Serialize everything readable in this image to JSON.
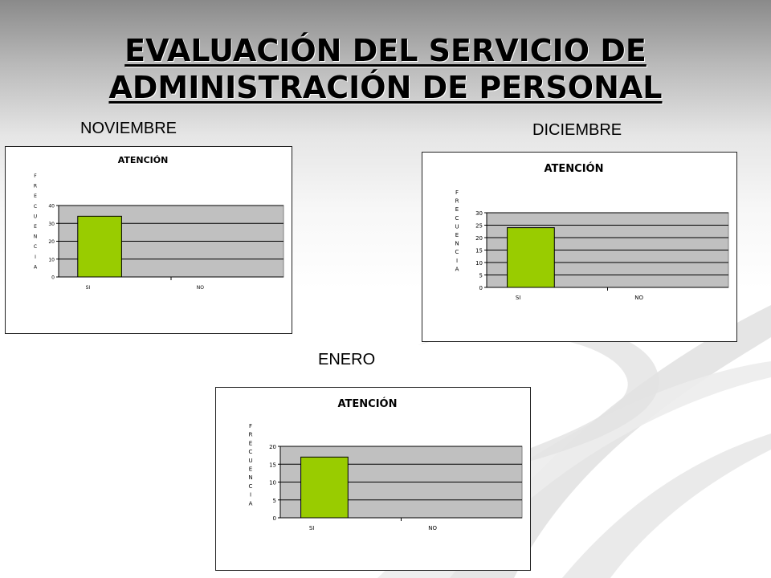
{
  "slide": {
    "title_line1": "EVALUACIÓN DEL SERVICIO DE",
    "title_line2": "ADMINISTRACIÓN DE PERSONAL"
  },
  "colors": {
    "bar": "#99cc00",
    "plot_bg": "#c0c0c0",
    "frame": "#222222"
  },
  "chart_data": [
    {
      "month": "NOVIEMBRE",
      "type": "bar",
      "title": "ATENCIÓN",
      "ylabel": "FRECUENCIA",
      "categories": [
        "SI",
        "NO"
      ],
      "values": [
        34,
        0
      ],
      "ylim": [
        0,
        40
      ],
      "yticks": [
        0,
        10,
        20,
        30,
        40
      ],
      "ytick_labels": [
        "0",
        "10",
        "20",
        "30",
        "40"
      ],
      "grid": true,
      "legend": "none"
    },
    {
      "month": "DICIEMBRE",
      "type": "bar",
      "title": "ATENCIÓN",
      "ylabel": "FRECUENCIA",
      "categories": [
        "SI",
        "NO"
      ],
      "values": [
        24,
        0
      ],
      "ylim": [
        0,
        30
      ],
      "yticks": [
        0,
        5,
        10,
        15,
        20,
        25,
        30
      ],
      "ytick_labels": [
        "0",
        "5",
        "10",
        "15",
        "20",
        "25",
        "30"
      ],
      "grid": true,
      "legend": "none"
    },
    {
      "month": "ENERO",
      "type": "bar",
      "title": "ATENCIÓN",
      "ylabel": "FRECUENCIA",
      "categories": [
        "SI",
        "NO"
      ],
      "values": [
        17,
        0
      ],
      "ylim": [
        0,
        20
      ],
      "yticks": [
        0,
        5,
        10,
        15,
        20
      ],
      "ytick_labels": [
        "0",
        "5",
        "10",
        "15",
        "20"
      ],
      "grid": true,
      "legend": "none"
    }
  ]
}
